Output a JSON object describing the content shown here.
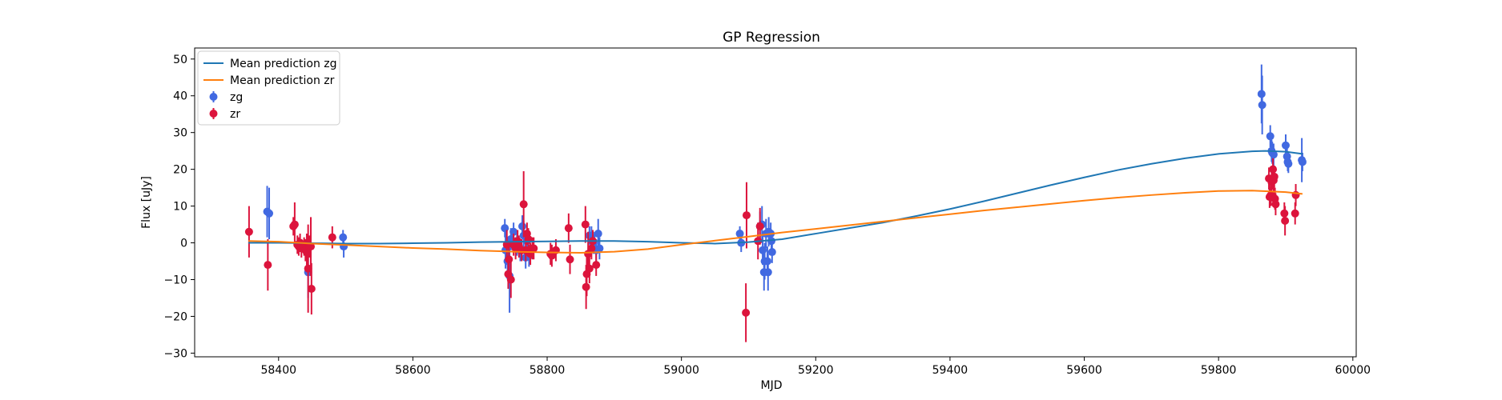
{
  "chart_data": {
    "type": "scatter",
    "title": "GP Regression",
    "xlabel": "MJD",
    "ylabel": "Flux [uJy]",
    "xlim": [
      58275,
      60005
    ],
    "ylim": [
      -31,
      53
    ],
    "xticks": [
      58400,
      58600,
      58800,
      59000,
      59200,
      59400,
      59600,
      59800,
      60000
    ],
    "yticks": [
      -30,
      -20,
      -10,
      0,
      10,
      20,
      30,
      40,
      50
    ],
    "grid": false,
    "legend_placement": "upper-left",
    "lines": [
      {
        "name": "Mean prediction zg",
        "color": "#1f77b4",
        "x": [
          58355,
          58400,
          58450,
          58500,
          58550,
          58600,
          58650,
          58700,
          58750,
          58800,
          58850,
          58900,
          58950,
          59000,
          59050,
          59100,
          59150,
          59200,
          59250,
          59300,
          59350,
          59400,
          59450,
          59500,
          59550,
          59600,
          59650,
          59700,
          59750,
          59800,
          59850,
          59870,
          59900,
          59925
        ],
        "y": [
          0.0,
          0.0,
          -0.1,
          -0.2,
          -0.2,
          -0.1,
          0.0,
          0.2,
          0.3,
          0.4,
          0.5,
          0.5,
          0.3,
          0.0,
          -0.2,
          0.2,
          1.0,
          2.5,
          4.0,
          5.5,
          7.3,
          9.2,
          11.3,
          13.5,
          15.7,
          17.8,
          19.8,
          21.5,
          23.0,
          24.2,
          24.9,
          25.0,
          24.8,
          24.2
        ]
      },
      {
        "name": "Mean prediction zr",
        "color": "#ff7f0e",
        "x": [
          58355,
          58400,
          58450,
          58500,
          58550,
          58600,
          58650,
          58700,
          58750,
          58800,
          58850,
          58900,
          58950,
          59000,
          59050,
          59100,
          59150,
          59200,
          59250,
          59300,
          59350,
          59400,
          59450,
          59500,
          59550,
          59600,
          59650,
          59700,
          59750,
          59800,
          59850,
          59900,
          59925
        ],
        "y": [
          0.5,
          0.3,
          -0.2,
          -0.6,
          -1.0,
          -1.4,
          -1.7,
          -2.1,
          -2.4,
          -2.6,
          -2.7,
          -2.4,
          -1.7,
          -0.5,
          0.6,
          1.7,
          2.8,
          3.8,
          4.8,
          5.8,
          6.8,
          7.8,
          8.8,
          9.7,
          10.6,
          11.5,
          12.3,
          13.0,
          13.6,
          14.1,
          14.2,
          13.8,
          13.3
        ]
      }
    ],
    "series": [
      {
        "name": "zg",
        "color": "#4169e1",
        "points": [
          [
            58383,
            8.5,
            7.0
          ],
          [
            58386,
            8.0,
            7.0
          ],
          [
            58442,
            -1.5,
            4.0
          ],
          [
            58444,
            -8.0,
            7.0
          ],
          [
            58496,
            1.5,
            2.0
          ],
          [
            58497,
            -1.0,
            3.0
          ],
          [
            58737,
            4.0,
            2.5
          ],
          [
            58738,
            -2.0,
            5.0
          ],
          [
            58741,
            -5.0,
            4.0
          ],
          [
            58744,
            -9.0,
            10.0
          ],
          [
            58746,
            1.0,
            3.0
          ],
          [
            58750,
            3.0,
            2.5
          ],
          [
            58755,
            -0.5,
            3.0
          ],
          [
            58760,
            -2.0,
            3.0
          ],
          [
            58763,
            4.5,
            3.0
          ],
          [
            58765,
            2.0,
            4.0
          ],
          [
            58768,
            -4.0,
            3.0
          ],
          [
            58770,
            0.5,
            3.0
          ],
          [
            58773,
            -3.5,
            3.0
          ],
          [
            58863,
            2.0,
            2.5
          ],
          [
            58866,
            1.5,
            3.0
          ],
          [
            58869,
            0.0,
            3.0
          ],
          [
            58873,
            -2.0,
            3.0
          ],
          [
            58876,
            2.5,
            4.0
          ],
          [
            58878,
            -1.5,
            3.0
          ],
          [
            59087,
            2.5,
            2.0
          ],
          [
            59089,
            0.0,
            2.5
          ],
          [
            59117,
            4.5,
            4.0
          ],
          [
            59120,
            5.0,
            5.0
          ],
          [
            59121,
            -2.0,
            4.0
          ],
          [
            59123,
            -8.0,
            5.0
          ],
          [
            59124,
            -5.0,
            5.0
          ],
          [
            59126,
            2.5,
            4.0
          ],
          [
            59128,
            -5.0,
            4.0
          ],
          [
            59129,
            -8.0,
            5.0
          ],
          [
            59130,
            3.0,
            4.0
          ],
          [
            59133,
            2.5,
            3.0
          ],
          [
            59134,
            0.5,
            3.0
          ],
          [
            59135,
            -2.5,
            3.0
          ],
          [
            59864,
            40.5,
            8.0
          ],
          [
            59865,
            37.5,
            8.0
          ],
          [
            59877,
            29.0,
            3.0
          ],
          [
            59879,
            25.0,
            3.0
          ],
          [
            59880,
            24.5,
            3.0
          ],
          [
            59882,
            24.0,
            3.0
          ],
          [
            59900,
            26.5,
            3.0
          ],
          [
            59902,
            23.5,
            2.5
          ],
          [
            59903,
            22.0,
            2.5
          ],
          [
            59904,
            21.5,
            2.5
          ],
          [
            59924,
            22.5,
            6.0
          ],
          [
            59925,
            22.0,
            2.5
          ]
        ]
      },
      {
        "name": "zr",
        "color": "#dc143c",
        "points": [
          [
            58356,
            3.0,
            7.0
          ],
          [
            58384,
            -6.0,
            7.0
          ],
          [
            58422,
            4.5,
            2.5
          ],
          [
            58424,
            5.0,
            6.0
          ],
          [
            58428,
            -0.5,
            2.5
          ],
          [
            58430,
            -1.0,
            2.5
          ],
          [
            58432,
            0.0,
            2.5
          ],
          [
            58434,
            -1.5,
            2.5
          ],
          [
            58438,
            -1.0,
            2.5
          ],
          [
            58440,
            -2.0,
            3.0
          ],
          [
            58442,
            -2.5,
            5.0
          ],
          [
            58444,
            -7.0,
            12.0
          ],
          [
            58446,
            -1.0,
            3.0
          ],
          [
            58448,
            -1.0,
            8.0
          ],
          [
            58449,
            -12.5,
            7.0
          ],
          [
            58480,
            1.5,
            3.0
          ],
          [
            58740,
            -0.5,
            4.0
          ],
          [
            58742,
            -8.5,
            4.0
          ],
          [
            58743,
            -4.5,
            5.0
          ],
          [
            58746,
            -10.0,
            5.0
          ],
          [
            58750,
            -0.5,
            3.0
          ],
          [
            58753,
            -1.5,
            3.0
          ],
          [
            58756,
            0.5,
            3.0
          ],
          [
            58758,
            -1.0,
            3.0
          ],
          [
            58762,
            -2.0,
            3.0
          ],
          [
            58765,
            10.5,
            9.0
          ],
          [
            58768,
            -2.0,
            3.0
          ],
          [
            58770,
            2.5,
            3.0
          ],
          [
            58772,
            1.0,
            3.0
          ],
          [
            58775,
            -3.0,
            3.0
          ],
          [
            58778,
            -1.5,
            3.0
          ],
          [
            58780,
            -1.5,
            3.0
          ],
          [
            58805,
            -3.0,
            3.0
          ],
          [
            58807,
            -3.5,
            3.0
          ],
          [
            58813,
            -2.0,
            3.0
          ],
          [
            58832,
            4.0,
            4.0
          ],
          [
            58834,
            -4.5,
            4.0
          ],
          [
            58857,
            5.0,
            5.0
          ],
          [
            58858,
            -12.0,
            6.0
          ],
          [
            58859,
            -8.5,
            6.0
          ],
          [
            58861,
            -3.0,
            6.0
          ],
          [
            58863,
            -7.0,
            4.0
          ],
          [
            58866,
            -1.5,
            3.0
          ],
          [
            58868,
            0.5,
            3.0
          ],
          [
            58873,
            -6.0,
            3.0
          ],
          [
            59096,
            -19.0,
            8.0
          ],
          [
            59097,
            7.5,
            9.0
          ],
          [
            59114,
            0.5,
            5.0
          ],
          [
            59117,
            4.5,
            5.0
          ],
          [
            59875,
            17.5,
            3.0
          ],
          [
            59876,
            12.5,
            3.0
          ],
          [
            59878,
            13.0,
            3.0
          ],
          [
            59879,
            16.5,
            3.0
          ],
          [
            59880,
            17.5,
            3.0
          ],
          [
            59881,
            20.0,
            3.0
          ],
          [
            59882,
            17.0,
            3.0
          ],
          [
            59883,
            18.0,
            3.0
          ],
          [
            59884,
            12.0,
            3.0
          ],
          [
            59885,
            10.5,
            3.0
          ],
          [
            59898,
            8.0,
            3.0
          ],
          [
            59899,
            6.0,
            4.0
          ],
          [
            59914,
            8.0,
            3.0
          ],
          [
            59915,
            13.0,
            3.0
          ]
        ]
      }
    ]
  }
}
